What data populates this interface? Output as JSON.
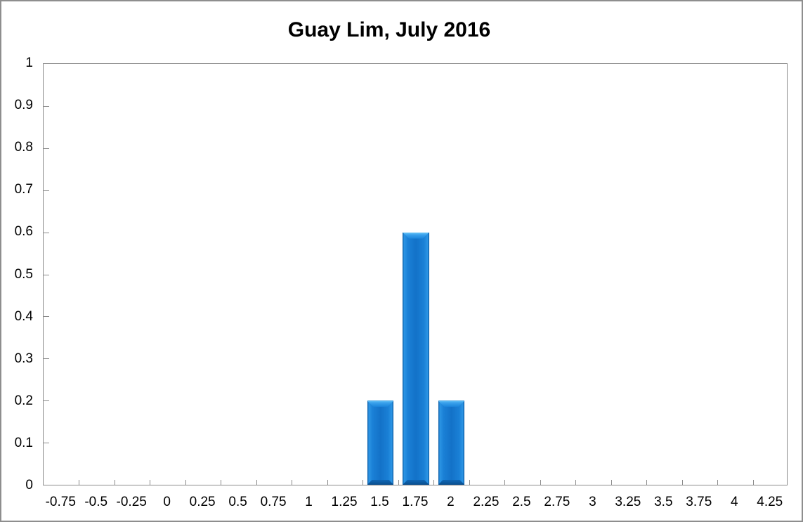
{
  "window": {
    "background": "#FFFFFF",
    "border_color": "#8E8E8E"
  },
  "chart_data": {
    "type": "bar",
    "title": "Guay Lim, July 2016",
    "categories": [
      "-0.75",
      "-0.5",
      "-0.25",
      "0",
      "0.25",
      "0.5",
      "0.75",
      "1",
      "1.25",
      "1.5",
      "1.75",
      "2",
      "2.25",
      "2.5",
      "2.75",
      "3",
      "3.25",
      "3.5",
      "3.75",
      "4",
      "4.25"
    ],
    "values": [
      0,
      0,
      0,
      0,
      0,
      0,
      0,
      0,
      0,
      0.2,
      0.6,
      0.2,
      0,
      0,
      0,
      0,
      0,
      0,
      0,
      0,
      0
    ],
    "xlabel": "",
    "ylabel": "",
    "ylim": [
      0,
      1
    ],
    "ytick_step": 0.1,
    "ytick_labels": [
      "0",
      "0.1",
      "0.2",
      "0.3",
      "0.4",
      "0.5",
      "0.6",
      "0.7",
      "0.8",
      "0.9",
      "1"
    ],
    "grid": false,
    "legend": "none",
    "bar_color": "#1476CC",
    "bar_highlight_color": "#4FB3F2",
    "bar_shadow_color": "#0A4E8E",
    "axis_color": "#8A8A8A",
    "bar_width_ratio": 0.75
  }
}
